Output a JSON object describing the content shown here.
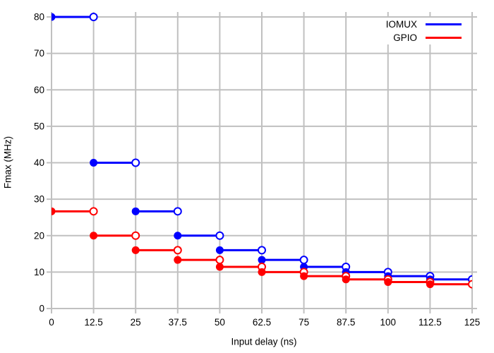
{
  "chart_data": {
    "type": "line",
    "subtype": "step-horizontal-segments",
    "title": "",
    "xlabel": "Input delay (ns)",
    "ylabel": "Fmax (MHz)",
    "xlim": [
      0,
      125
    ],
    "ylim": [
      0,
      80
    ],
    "grid": true,
    "legend_position": "top-right-inside",
    "x_ticks": [
      0,
      12.5,
      25,
      37.5,
      50,
      62.5,
      75,
      87.5,
      100,
      112.5,
      125
    ],
    "x_tick_labels": [
      "0",
      "12.5",
      "25",
      "37.5",
      "50",
      "62.5",
      "75",
      "87.5",
      "100",
      "112.5",
      "125"
    ],
    "y_ticks": [
      0,
      10,
      20,
      30,
      40,
      50,
      60,
      70,
      80
    ],
    "y_tick_labels": [
      "0",
      "10",
      "20",
      "30",
      "40",
      "50",
      "60",
      "70",
      "80"
    ],
    "segment_boundaries_x": [
      0,
      12.5,
      25,
      37.5,
      50,
      62.5,
      75,
      87.5,
      100,
      112.5,
      125
    ],
    "series": [
      {
        "name": "IOMUX",
        "color": "#0000ff",
        "values": [
          80,
          40,
          26.67,
          20,
          16,
          13.33,
          11.43,
          10,
          8.89,
          8
        ]
      },
      {
        "name": "GPIO",
        "color": "#ff0000",
        "values": [
          26.67,
          20,
          16,
          13.33,
          11.43,
          10,
          8.89,
          8,
          7.27,
          6.67
        ]
      }
    ],
    "marker_style": {
      "segment_start": "filled-circle",
      "segment_end": "open-circle"
    },
    "colors": {
      "grid": "#c0c0c0",
      "border": "#c0c0c0",
      "text": "#000000",
      "background": "#ffffff"
    }
  }
}
